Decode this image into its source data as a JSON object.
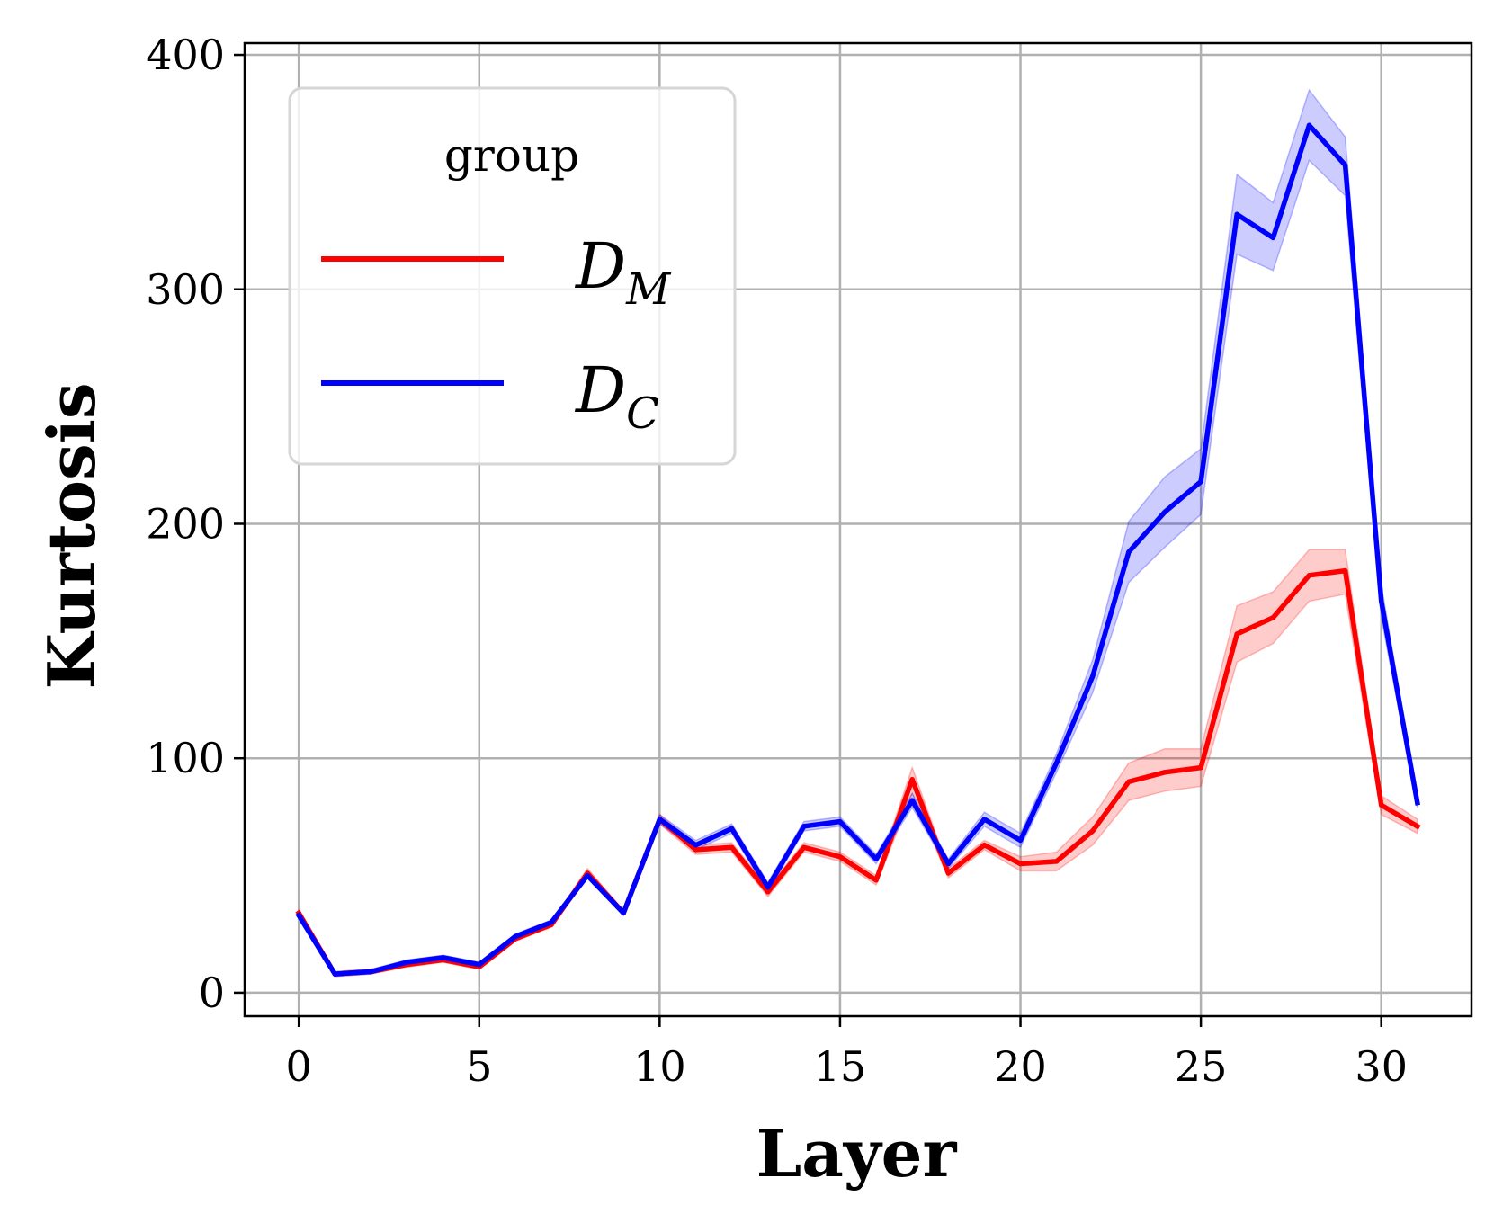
{
  "chart_data": {
    "type": "line",
    "xlabel": "Layer",
    "ylabel": "Kurtosis",
    "xlim": [
      -1.5,
      32.5
    ],
    "ylim": [
      -10,
      405
    ],
    "xticks": [
      0,
      5,
      10,
      15,
      20,
      25,
      30
    ],
    "yticks": [
      0,
      100,
      200,
      300,
      400
    ],
    "grid": true,
    "legend": {
      "title": "group",
      "placement": "top-left",
      "entries": [
        {
          "main": "D",
          "sub": "M"
        },
        {
          "main": "D",
          "sub": "C"
        }
      ]
    },
    "x": [
      0,
      1,
      2,
      3,
      4,
      5,
      6,
      7,
      8,
      9,
      10,
      11,
      12,
      13,
      14,
      15,
      16,
      17,
      18,
      19,
      20,
      21,
      22,
      23,
      24,
      25,
      26,
      27,
      28,
      29,
      30,
      31
    ],
    "series": [
      {
        "name": "D_M",
        "color": "#ff0000",
        "values": [
          34,
          8,
          9,
          12,
          14,
          11,
          23,
          29,
          51,
          34,
          74,
          61,
          62,
          43,
          62,
          58,
          48,
          91,
          51,
          63,
          55,
          56,
          69,
          90,
          94,
          96,
          153,
          160,
          178,
          180,
          80,
          71
        ],
        "ci_low": [
          33,
          7,
          8,
          11,
          13,
          10,
          22,
          28,
          49,
          33,
          72,
          59,
          60,
          41,
          60,
          56,
          46,
          85,
          49,
          61,
          52,
          52,
          63,
          82,
          86,
          88,
          141,
          149,
          167,
          170,
          76,
          68
        ],
        "ci_high": [
          35,
          9,
          10,
          13,
          15,
          12,
          24,
          30,
          53,
          35,
          76,
          63,
          64,
          45,
          64,
          60,
          50,
          96,
          53,
          65,
          58,
          60,
          75,
          98,
          104,
          104,
          165,
          171,
          189,
          189,
          84,
          74
        ]
      },
      {
        "name": "D_C",
        "color": "#0000ff",
        "values": [
          33,
          8,
          9,
          13,
          15,
          12,
          24,
          30,
          50,
          34,
          74,
          63,
          70,
          45,
          71,
          73,
          57,
          82,
          55,
          74,
          65,
          98,
          135,
          188,
          205,
          218,
          332,
          322,
          370,
          353,
          167,
          81
        ],
        "ci_low": [
          32,
          7,
          8,
          12,
          14,
          11,
          23,
          29,
          49,
          33,
          72,
          61,
          68,
          43,
          69,
          71,
          55,
          79,
          53,
          71,
          62,
          94,
          128,
          175,
          190,
          204,
          315,
          308,
          355,
          340,
          160,
          79
        ],
        "ci_high": [
          34,
          9,
          10,
          14,
          16,
          13,
          25,
          31,
          51,
          35,
          76,
          65,
          72,
          47,
          73,
          75,
          59,
          85,
          57,
          77,
          68,
          102,
          142,
          201,
          220,
          232,
          349,
          337,
          385,
          365,
          174,
          83
        ]
      }
    ]
  }
}
